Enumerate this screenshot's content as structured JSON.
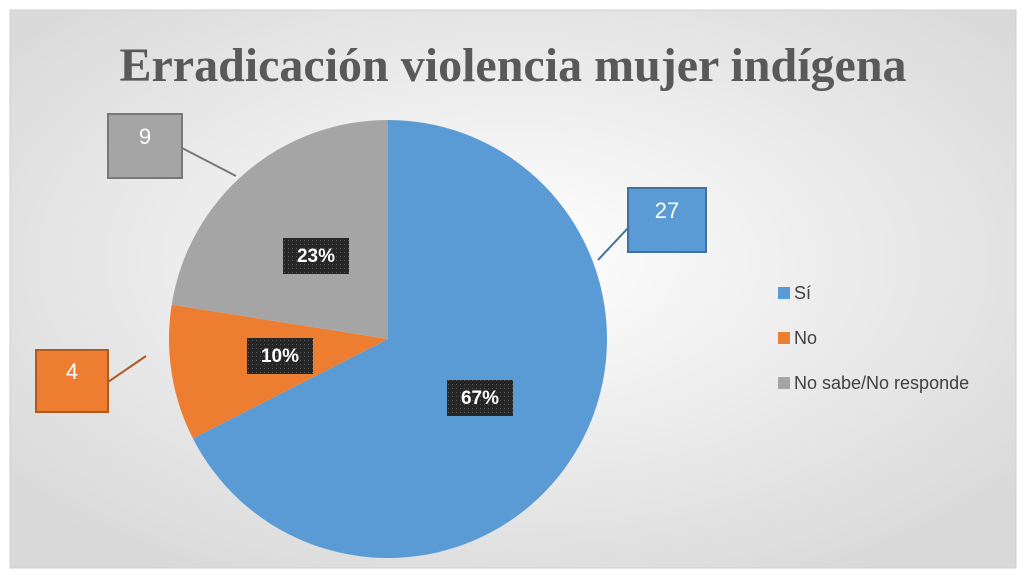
{
  "chart_data": {
    "type": "pie",
    "title": "Erradicación violencia mujer indígena",
    "categories": [
      "Sí",
      "No",
      "No sabe/No responde"
    ],
    "values": [
      27,
      4,
      9
    ],
    "percentages": [
      67,
      10,
      23
    ],
    "percentage_labels": [
      "67%",
      "10%",
      "23%"
    ],
    "colors": [
      "#5b9bd5",
      "#ed7d31",
      "#a5a5a5"
    ],
    "legend": "right"
  }
}
